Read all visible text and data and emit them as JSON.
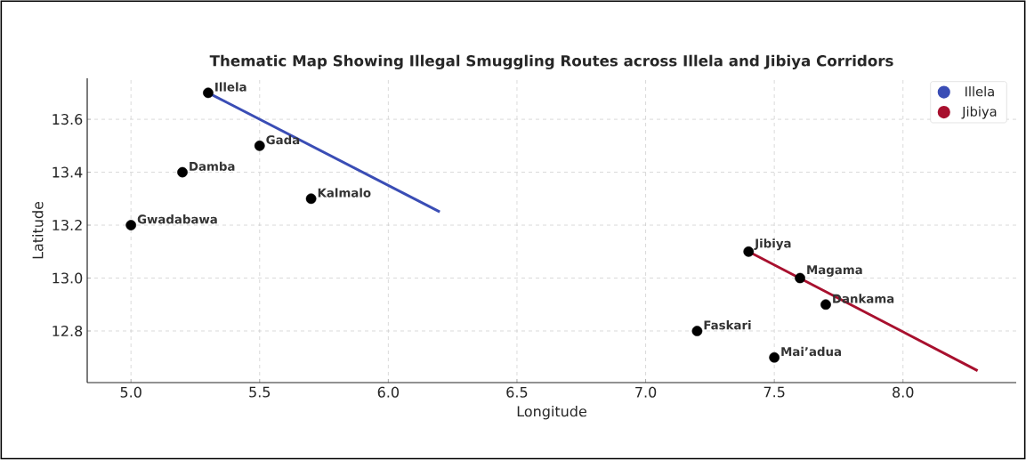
{
  "chart_data": {
    "type": "scatter",
    "title": "Thematic Map Showing Illegal Smuggling Routes across Illela and Jibiya Corridors",
    "xlabel": "Longitude",
    "ylabel": "Latitude",
    "series": [
      {
        "type": "scatter",
        "color": "#000000",
        "x": [
          5.3,
          5.5,
          5.2,
          5.7,
          5.0,
          7.4,
          7.6,
          7.7,
          7.2,
          7.5
        ],
        "values": [
          13.7,
          13.5,
          13.4,
          13.3,
          13.2,
          13.1,
          13.0,
          12.9,
          12.8,
          12.7
        ]
      },
      {
        "type": "line",
        "name": "Illela",
        "color": "#3a4db5",
        "marker": "none",
        "line_style": "solid",
        "x": [
          5.3,
          6.2
        ],
        "values": [
          13.7,
          13.25
        ]
      },
      {
        "type": "line",
        "name": "Jibiya",
        "color": "#a8102e",
        "marker": "none",
        "line_style": "solid",
        "x": [
          7.4,
          8.29
        ],
        "values": [
          13.1,
          12.65
        ]
      }
    ],
    "annotations": [
      {
        "text": "Illela",
        "x": 5.3,
        "y": 13.7
      },
      {
        "text": "Gada",
        "x": 5.5,
        "y": 13.5
      },
      {
        "text": "Damba",
        "x": 5.2,
        "y": 13.4
      },
      {
        "text": "Kalmalo",
        "x": 5.7,
        "y": 13.3
      },
      {
        "text": "Gwadabawa",
        "x": 5.0,
        "y": 13.2
      },
      {
        "text": "Jibiya",
        "x": 7.4,
        "y": 13.1
      },
      {
        "text": "Magama",
        "x": 7.6,
        "y": 13.0
      },
      {
        "text": "Dankama",
        "x": 7.7,
        "y": 12.9
      },
      {
        "text": "Faskari",
        "x": 7.2,
        "y": 12.8
      },
      {
        "text": "Mai’adua",
        "x": 7.5,
        "y": 12.7
      }
    ],
    "xlim": [
      4.83,
      8.44
    ],
    "ylim": [
      12.605,
      13.755
    ],
    "xticks": [
      {
        "value": 5,
        "label": "5.0"
      },
      5.5,
      {
        "value": 6,
        "label": "6.0"
      },
      6.5,
      {
        "value": 7,
        "label": "7.0"
      },
      7.5,
      {
        "value": 8,
        "label": "8.0"
      }
    ],
    "yticks": [
      12.8,
      {
        "value": 13,
        "label": "13.0"
      },
      13.2,
      13.4,
      13.6
    ],
    "grid": true,
    "legend": "top right",
    "marker": "circle"
  }
}
